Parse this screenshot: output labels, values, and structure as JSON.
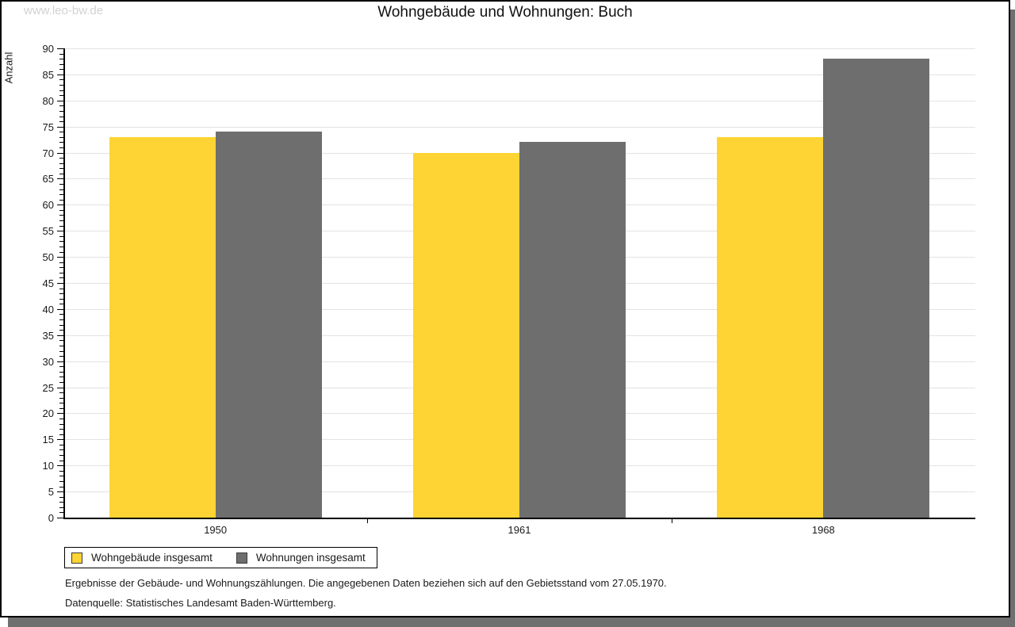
{
  "watermark": "www.leo-bw.de",
  "title": "Wohngebäude und Wohnungen: Buch",
  "chart_data": {
    "type": "bar",
    "title": "Wohngebäude und Wohnungen: Buch",
    "xlabel": "",
    "ylabel": "Anzahl",
    "categories": [
      "1950",
      "1961",
      "1968"
    ],
    "series": [
      {
        "name": "Wohngebäude insgesamt",
        "color": "#fdd433",
        "values": [
          73,
          70,
          73
        ]
      },
      {
        "name": "Wohnungen insgesamt",
        "color": "#6e6e6e",
        "values": [
          74,
          72,
          88
        ]
      }
    ],
    "ylim": [
      0,
      90
    ],
    "ytick_major_step": 5,
    "ytick_minor_step": 1,
    "grid": "horizontal-major",
    "legend_position": "bottom-left"
  },
  "legend": {
    "items": [
      {
        "label": "Wohngebäude insgesamt",
        "color": "#fdd433"
      },
      {
        "label": "Wohnungen insgesamt",
        "color": "#6e6e6e"
      }
    ]
  },
  "footnotes": {
    "line1": "Ergebnisse der Gebäude- und Wohnungszählungen. Die angegebenen Daten beziehen sich auf den Gebietsstand vom 27.05.1970.",
    "line2": "Datenquelle: Statistisches Landesamt Baden-Württemberg."
  },
  "colors": {
    "series1": "#fdd433",
    "series2": "#6e6e6e",
    "gridline": "#e3e3e3",
    "axis": "#000000",
    "page_shadow": "#6f6f6f",
    "watermark": "#d2d2d2"
  }
}
